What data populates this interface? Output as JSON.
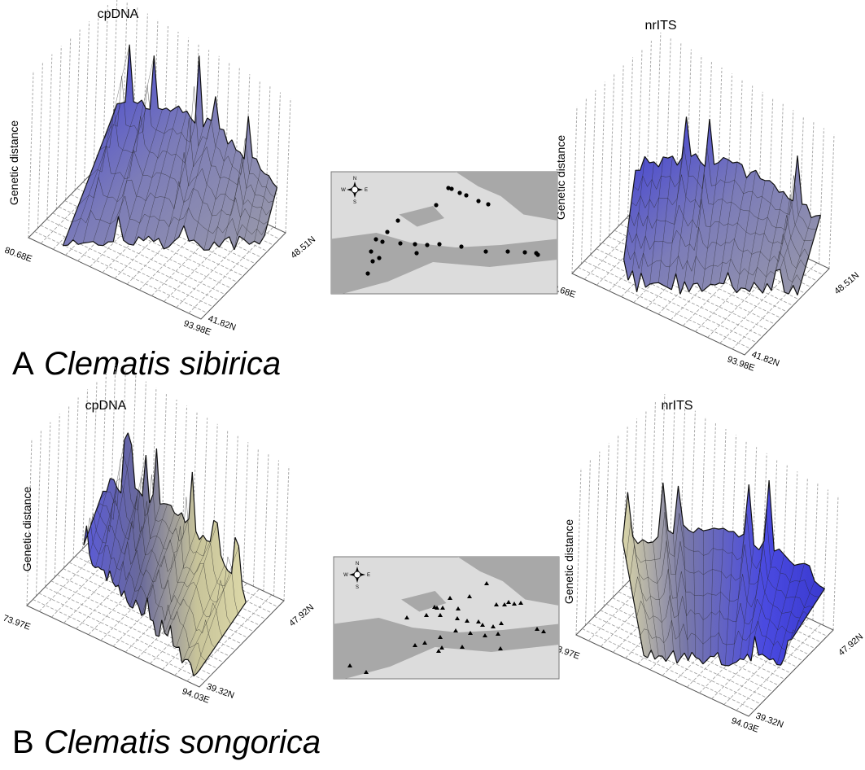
{
  "panels": [
    {
      "letter": "A",
      "species": "Clematis sibirica",
      "plots": [
        {
          "title": "cpDNA",
          "y_label": "Genetic distance",
          "west": "80.68E",
          "east": "93.98E",
          "south": "41.82N",
          "north": "48.51N"
        },
        {
          "title": "nrITS",
          "y_label": "Genetic distance",
          "west": "80.68E",
          "east": "93.98E",
          "south": "41.82N",
          "north": "48.51N"
        }
      ],
      "compass": {
        "n": "N",
        "s": "S",
        "e": "E",
        "w": "W"
      }
    },
    {
      "letter": "B",
      "species": "Clematis songorica",
      "plots": [
        {
          "title": "cpDNA",
          "y_label": "Genetic distance",
          "west": "73.97E",
          "east": "94.03E",
          "south": "39.32N",
          "north": "47.92N"
        },
        {
          "title": "nrITS",
          "y_label": "Genetic distance",
          "west": "73.97E",
          "east": "94.03E",
          "south": "39.32N",
          "north": "47.92N"
        }
      ],
      "compass": {
        "n": "N",
        "s": "S",
        "e": "E",
        "w": "W"
      }
    }
  ]
}
